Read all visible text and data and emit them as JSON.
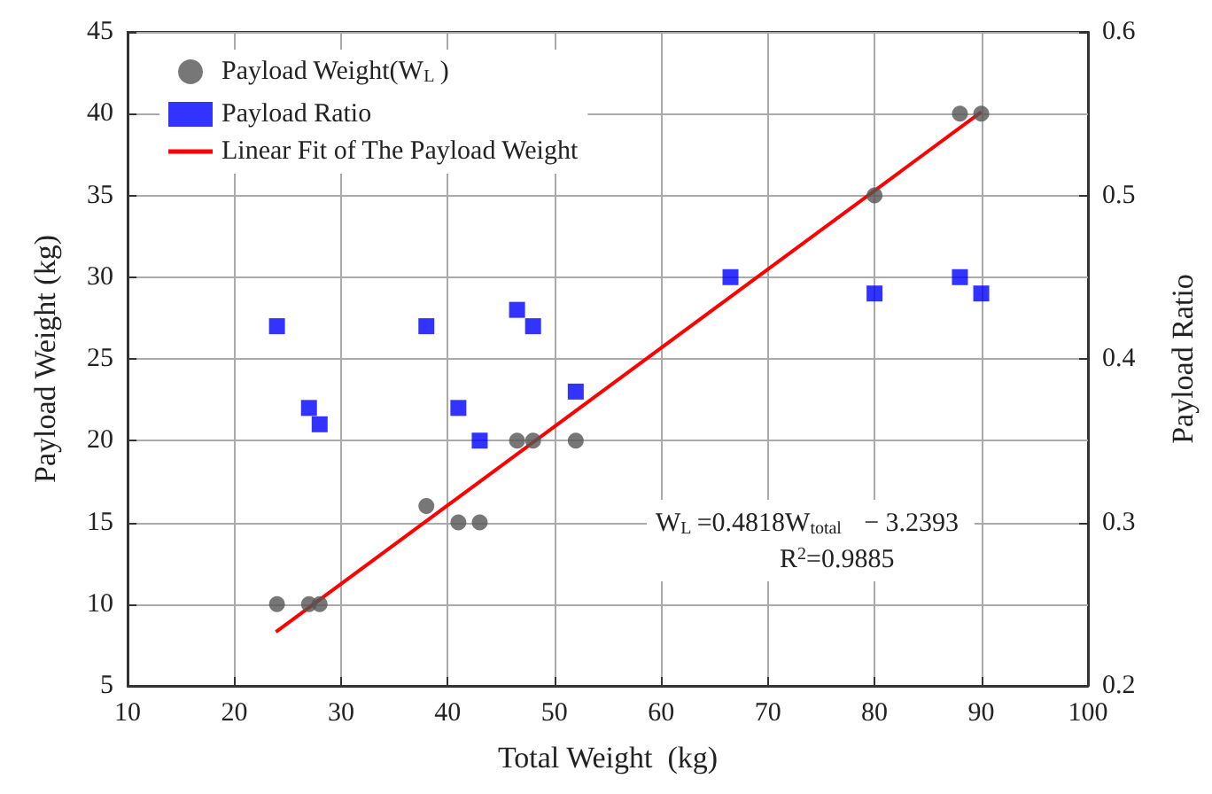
{
  "chart_data": {
    "type": "scatter",
    "xlabel": "Total Weight  (kg)",
    "ylabel": "Payload Weight (kg)",
    "y2label": "Payload Ratio",
    "xlim": [
      10,
      100
    ],
    "xticks": [
      10,
      20,
      30,
      40,
      50,
      60,
      70,
      80,
      90,
      100
    ],
    "ylim": [
      5,
      45
    ],
    "yticks": [
      5,
      10,
      15,
      20,
      25,
      30,
      35,
      40,
      45
    ],
    "y2lim": [
      0.2,
      0.6
    ],
    "y2ticks": [
      0.2,
      0.3,
      0.4,
      0.5,
      0.6
    ],
    "grid": true,
    "legend": "top left",
    "annotations": [
      "W$_{L}$=0.4818W$_{total}$ − 3.2393",
      "R$^{2}$=0.9885"
    ],
    "series": [
      {
        "name": "Payload Weight(W$_{L}$)",
        "marker": "circle",
        "color": "#555555",
        "x": [
          24,
          27,
          28,
          38,
          41,
          43,
          46.5,
          48,
          52,
          80,
          88,
          90
        ],
        "values": [
          10,
          10,
          10,
          16,
          15,
          15,
          20,
          20,
          20,
          35,
          40,
          40
        ]
      },
      {
        "name": "Payload Ratio",
        "marker": "square",
        "axis": "y2",
        "color": "#0000ff",
        "x": [
          24,
          27,
          28,
          38,
          41,
          43,
          46.5,
          48,
          52,
          66.5,
          80,
          88,
          90
        ],
        "values": [
          0.42,
          0.37,
          0.36,
          0.42,
          0.37,
          0.35,
          0.43,
          0.42,
          0.38,
          0.45,
          0.44,
          0.45,
          0.44
        ]
      },
      {
        "name": "Linear Fit of The Payload Weight",
        "type": "line",
        "marker": "none",
        "color": "#ff0000",
        "x": [
          23.9,
          90
        ],
        "values": [
          8.3,
          40.1
        ]
      }
    ]
  }
}
